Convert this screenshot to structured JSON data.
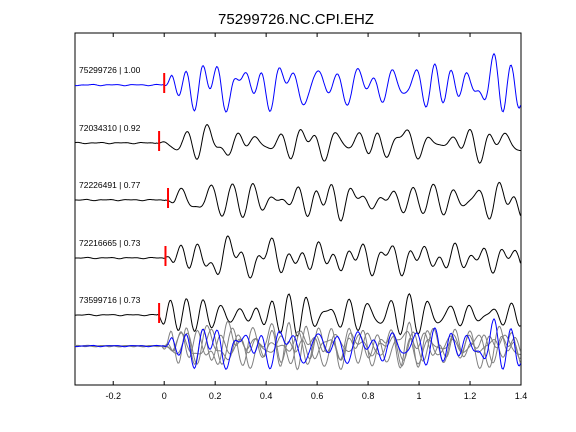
{
  "chart_data": {
    "type": "line",
    "title": "75299726.NC.CPI.EHZ",
    "xlabel": "",
    "ylabel": "",
    "xlim": [
      -0.35,
      1.4
    ],
    "x_ticks": [
      -0.2,
      0,
      0.2,
      0.4,
      0.6,
      0.8,
      1,
      1.2,
      1.4
    ],
    "x_tick_labels": [
      "-0.2",
      "0",
      "0.2",
      "0.4",
      "0.6",
      "0.8",
      "1",
      "1.2",
      "1.4"
    ],
    "grid": false,
    "series": [
      {
        "label": "75299726 | 1.00",
        "color": "#0000ff",
        "pick_time": 0.0,
        "seed": 3
      },
      {
        "label": "72034310 | 0.92",
        "color": "#000000",
        "pick_time": -0.02,
        "seed": 7
      },
      {
        "label": "72226491 | 0.77",
        "color": "#000000",
        "pick_time": 0.015,
        "seed": 11
      },
      {
        "label": "72216665 | 0.73",
        "color": "#000000",
        "pick_time": 0.005,
        "seed": 17
      },
      {
        "label": "73599716 | 0.73",
        "color": "#000000",
        "pick_time": -0.02,
        "seed": 23
      }
    ],
    "stack": {
      "colors": [
        "#808080",
        "#0000ff"
      ],
      "onset_time": 0.0
    },
    "pick_color": "#ff0000"
  }
}
